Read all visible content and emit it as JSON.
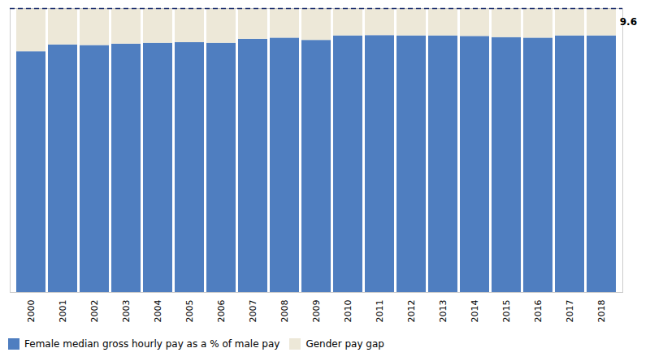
{
  "chart_data": {
    "type": "bar",
    "stacked": true,
    "categories": [
      "2000",
      "2001",
      "2002",
      "2003",
      "2004",
      "2005",
      "2006",
      "2007",
      "2008",
      "2009",
      "2010",
      "2011",
      "2012",
      "2013",
      "2014",
      "2015",
      "2016",
      "2017",
      "2018"
    ],
    "series": [
      {
        "name": "Female median gross hourly pay as a % of male pay",
        "color": "#4F7EC0",
        "values": [
          84.8,
          87.2,
          87.0,
          87.5,
          87.8,
          88.0,
          87.8,
          89.2,
          89.6,
          88.8,
          90.4,
          90.5,
          90.4,
          90.4,
          90.2,
          89.8,
          89.6,
          90.4,
          90.4
        ]
      },
      {
        "name": "Gender pay gap",
        "color": "#EDE8D8",
        "values": [
          15.2,
          12.8,
          13.0,
          12.5,
          12.2,
          12.0,
          12.2,
          10.8,
          10.4,
          11.2,
          9.6,
          9.5,
          9.6,
          9.6,
          9.8,
          10.2,
          10.4,
          9.6,
          9.6
        ]
      }
    ],
    "ylim": [
      0,
      100
    ],
    "tick_labels": "x",
    "grid": false,
    "legend": "bottom",
    "reference_lines": [
      {
        "y": 100,
        "color": "#1C2F6E",
        "line_style": "dashed"
      }
    ],
    "annotations": [
      {
        "text": "9.6",
        "x": "2018"
      }
    ]
  }
}
